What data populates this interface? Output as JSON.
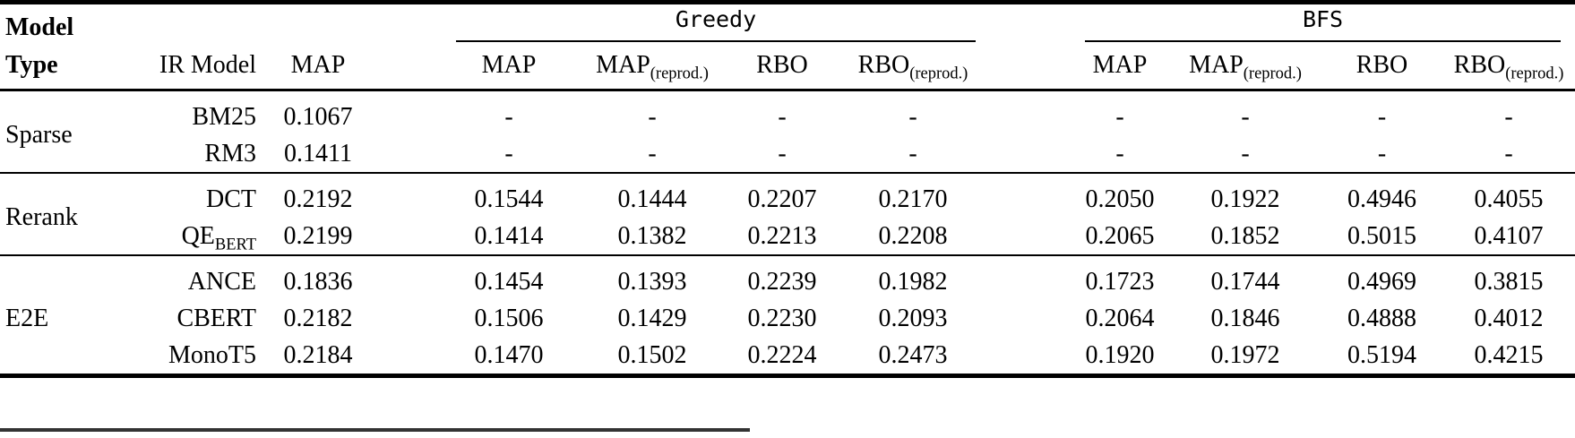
{
  "header": {
    "model_line1": "Model",
    "model_line2": "Type",
    "ir_model": "IR Model",
    "map_overall": "MAP",
    "greedy_group": "Greedy",
    "bfs_group": "BFS",
    "metric_map": "MAP",
    "metric_rbo": "RBO",
    "reprod_subscript": "(reprod.)"
  },
  "body": {
    "groups": [
      {
        "type": "Sparse",
        "rows": [
          {
            "model": "BM25",
            "model_sub": "",
            "map": "0.1067",
            "greedy": [
              "-",
              "-",
              "-",
              "-"
            ],
            "bfs": [
              "-",
              "-",
              "-",
              "-"
            ]
          },
          {
            "model": "RM3",
            "model_sub": "",
            "map": "0.1411",
            "greedy": [
              "-",
              "-",
              "-",
              "-"
            ],
            "bfs": [
              "-",
              "-",
              "-",
              "-"
            ]
          }
        ]
      },
      {
        "type": "Rerank",
        "rows": [
          {
            "model": "DCT",
            "model_sub": "",
            "map": "0.2192",
            "greedy": [
              "0.1544",
              "0.1444",
              "0.2207",
              "0.2170"
            ],
            "bfs": [
              "0.2050",
              "0.1922",
              "0.4946",
              "0.4055"
            ]
          },
          {
            "model": "QE",
            "model_sub": "BERT",
            "map": "0.2199",
            "greedy": [
              "0.1414",
              "0.1382",
              "0.2213",
              "0.2208"
            ],
            "bfs": [
              "0.2065",
              "0.1852",
              "0.5015",
              "0.4107"
            ]
          }
        ]
      },
      {
        "type": "E2E",
        "rows": [
          {
            "model": "ANCE",
            "model_sub": "",
            "map": "0.1836",
            "greedy": [
              "0.1454",
              "0.1393",
              "0.2239",
              "0.1982"
            ],
            "bfs": [
              "0.1723",
              "0.1744",
              "0.4969",
              "0.3815"
            ]
          },
          {
            "model": "CBERT",
            "model_sub": "",
            "map": "0.2182",
            "greedy": [
              "0.1506",
              "0.1429",
              "0.2230",
              "0.2093"
            ],
            "bfs": [
              "0.2064",
              "0.1846",
              "0.4888",
              "0.4012"
            ]
          },
          {
            "model": "MonoT5",
            "model_sub": "",
            "map": "0.2184",
            "greedy": [
              "0.1470",
              "0.1502",
              "0.2224",
              "0.2473"
            ],
            "bfs": [
              "0.1920",
              "0.1972",
              "0.5194",
              "0.4215"
            ]
          }
        ]
      }
    ]
  },
  "colors": {
    "text": "#000000",
    "rule": "#000000",
    "partial_rule": "#333333",
    "background": "#ffffff"
  }
}
